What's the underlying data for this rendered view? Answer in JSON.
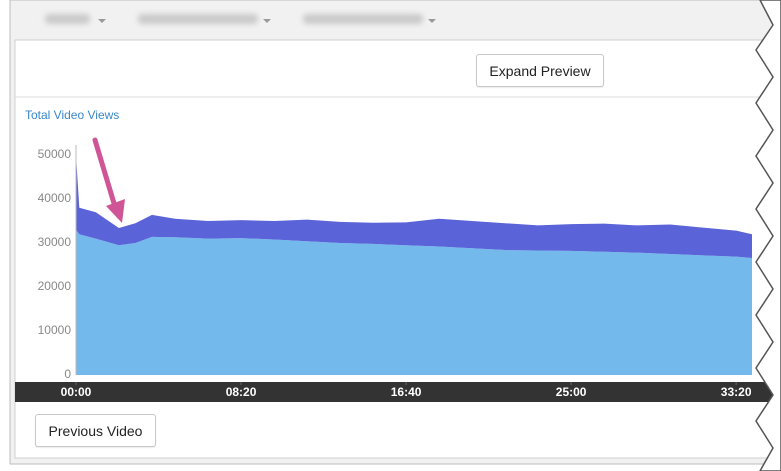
{
  "toolbar": {
    "expand_button": "Expand Preview"
  },
  "footer": {
    "previous_button": "Previous Video"
  },
  "chart_data": {
    "type": "area",
    "stacked": true,
    "title": "Total Video Views",
    "x": [
      0,
      10,
      60,
      130,
      180,
      230,
      300,
      400,
      500,
      600,
      700,
      800,
      900,
      1000,
      1100,
      1200,
      1300,
      1400,
      1500,
      1600,
      1700,
      1800,
      1900,
      2000,
      2048
    ],
    "series": [
      {
        "color": "#74b9ec",
        "values": [
          33000,
          32000,
          31000,
          29500,
          30000,
          31400,
          31300,
          31000,
          31100,
          30800,
          30400,
          30000,
          29800,
          29500,
          29200,
          28800,
          28400,
          28300,
          28200,
          28000,
          27800,
          27500,
          27200,
          26900,
          26600
        ]
      },
      {
        "color": "#5b63d8",
        "values": [
          17000,
          6000,
          6000,
          3900,
          4500,
          5000,
          4200,
          4000,
          4100,
          4200,
          4900,
          4800,
          4800,
          5200,
          6300,
          6200,
          6100,
          5700,
          6100,
          6400,
          6200,
          6700,
          6300,
          5900,
          5400
        ]
      }
    ],
    "xlim": [
      0,
      2048
    ],
    "xticks": [
      {
        "value": 0,
        "label": "00:00"
      },
      {
        "value": 500,
        "label": "08:20"
      },
      {
        "value": 1000,
        "label": "16:40"
      },
      {
        "value": 1500,
        "label": "25:00"
      },
      {
        "value": 2000,
        "label": "33:20"
      }
    ],
    "ylim": [
      0,
      50000
    ],
    "yticks": [
      0,
      10000,
      20000,
      30000,
      40000,
      50000
    ],
    "grid": false
  }
}
